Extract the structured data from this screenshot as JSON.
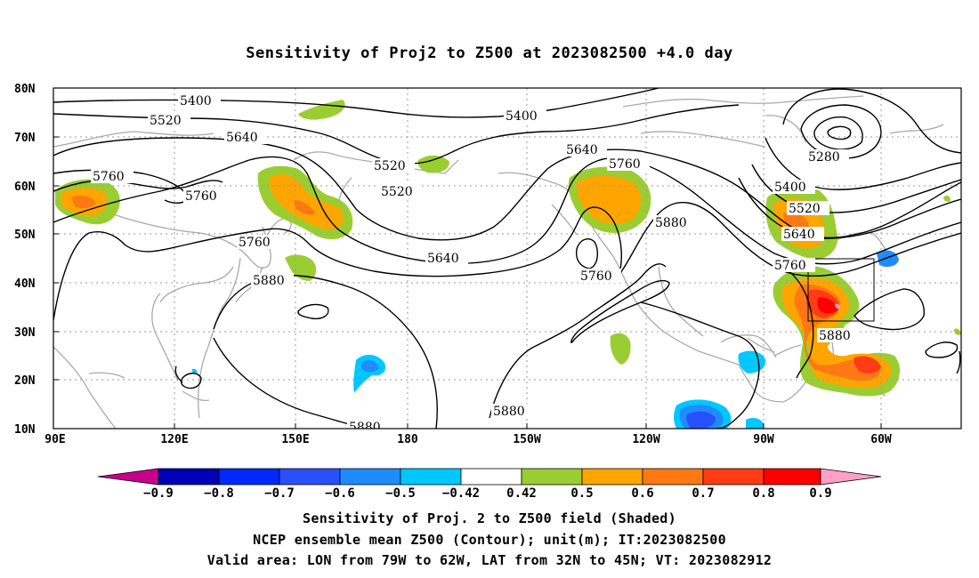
{
  "title": "Sensitivity of Proj2 to Z500 at 2023082500 +4.0 day",
  "map": {
    "lat_ticks": [
      "80N",
      "70N",
      "60N",
      "50N",
      "40N",
      "30N",
      "20N",
      "10N"
    ],
    "lon_ticks": [
      "90E",
      "120E",
      "150E",
      "180",
      "150W",
      "120W",
      "90W",
      "60W"
    ],
    "contour_labels": [
      {
        "text": "5400"
      },
      {
        "text": "5520"
      },
      {
        "text": "5640"
      },
      {
        "text": "5760"
      },
      {
        "text": "5760"
      },
      {
        "text": "5760"
      },
      {
        "text": "5880"
      },
      {
        "text": "5520"
      },
      {
        "text": "5520"
      },
      {
        "text": "5640"
      },
      {
        "text": "5400"
      },
      {
        "text": "5640"
      },
      {
        "text": "5760"
      },
      {
        "text": "5760"
      },
      {
        "text": "5880"
      },
      {
        "text": "5880"
      },
      {
        "text": "5880"
      },
      {
        "text": "5280"
      },
      {
        "text": "5400"
      },
      {
        "text": "5520"
      },
      {
        "text": "5640"
      },
      {
        "text": "5760"
      },
      {
        "text": "5880"
      }
    ],
    "valid_area": {
      "lon_from": "79W",
      "lon_to": "62W",
      "lat_from": "32N",
      "lat_to": "45N"
    }
  },
  "colorbar": {
    "labels": [
      "-0.9",
      "-0.8",
      "-0.7",
      "-0.6",
      "-0.5",
      "-0.42",
      "0.42",
      "0.5",
      "0.6",
      "0.7",
      "0.8",
      "0.9"
    ],
    "colors": [
      "#c8008c",
      "#0000b4",
      "#0028ff",
      "#2850ff",
      "#1e8cff",
      "#00c8ff",
      "#ffffff",
      "#9acd32",
      "#ffa500",
      "#ff7814",
      "#ff3c14",
      "#ff0000",
      "#ffa0c8"
    ]
  },
  "caption": {
    "line1": "Sensitivity of Proj. 2 to Z500 field (Shaded)",
    "line2": "NCEP ensemble mean Z500 (Contour); unit(m); IT:2023082500",
    "line3": "Valid area: LON from 79W to 62W, LAT from 32N to 45N; VT: 2023082912"
  }
}
